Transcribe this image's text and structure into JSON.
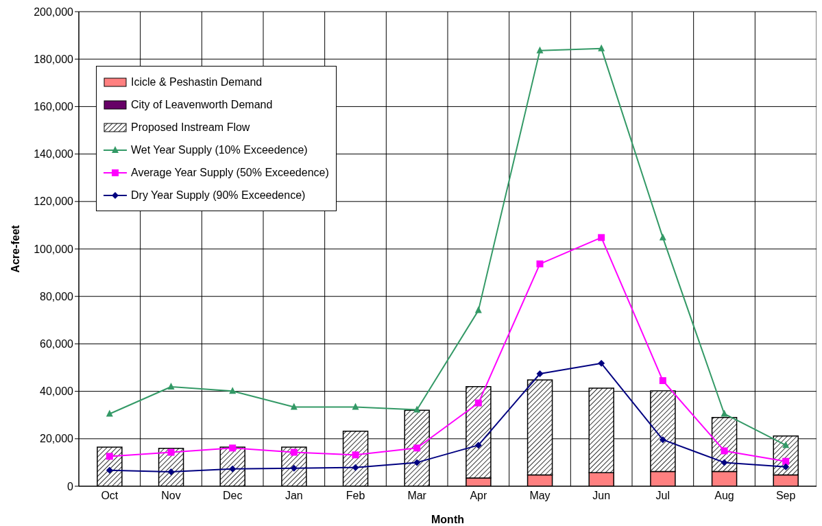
{
  "chart_data": {
    "type": "bar",
    "xlabel": "Month",
    "ylabel": "Acre-feet",
    "stacked": true,
    "categories": [
      "Oct",
      "Nov",
      "Dec",
      "Jan",
      "Feb",
      "Mar",
      "Apr",
      "May",
      "Jun",
      "Jul",
      "Aug",
      "Sep"
    ],
    "series": [
      {
        "name": "Icicle & Peshastin Demand",
        "color": "#ff8080",
        "values": [
          0,
          0,
          0,
          0,
          0,
          0,
          3500,
          4800,
          5700,
          6200,
          6200,
          4800
        ]
      },
      {
        "name": "City of Leavenworth Demand",
        "color": "#660066",
        "values": [
          0,
          0,
          0,
          0,
          0,
          0,
          0,
          0,
          0,
          0,
          0,
          0
        ]
      },
      {
        "name": "Proposed Instream Flow",
        "color": "#000000",
        "values": [
          16500,
          16000,
          16500,
          16500,
          23200,
          32000,
          38500,
          40000,
          35600,
          34000,
          22800,
          16400
        ]
      },
      {
        "name": "Wet Year Supply (10% Exceedence)",
        "type": "line",
        "marker": "triangle",
        "color": "#339966",
        "values": [
          30500,
          41900,
          40100,
          33400,
          33400,
          32200,
          74100,
          183600,
          184500,
          104800,
          30500,
          17300
        ]
      },
      {
        "name": "Average Year Supply (50% Exceedence)",
        "type": "line",
        "marker": "square",
        "color": "#ff00ff",
        "values": [
          12600,
          14300,
          16100,
          14300,
          13200,
          16100,
          35100,
          93700,
          104800,
          44500,
          14900,
          10500
        ]
      },
      {
        "name": "Dry Year Supply (90% Exceedence)",
        "type": "line",
        "marker": "diamond",
        "color": "#000080",
        "values": [
          6700,
          6100,
          7300,
          7600,
          7900,
          10000,
          17300,
          47400,
          51800,
          19600,
          10000,
          8200
        ]
      }
    ],
    "ylim": [
      0,
      200000
    ],
    "yticks": [
      0,
      {
        "value": 20000,
        "label": "20,000"
      },
      {
        "value": 40000,
        "label": "40,000"
      },
      {
        "value": 60000,
        "label": "60,000"
      },
      {
        "value": 80000,
        "label": "80,000"
      },
      {
        "value": 100000,
        "label": "100,000"
      },
      {
        "value": 120000,
        "label": "120,000"
      },
      {
        "value": 140000,
        "label": "140,000"
      },
      {
        "value": 160000,
        "label": "160,000"
      },
      {
        "value": 180000,
        "label": "180,000"
      },
      {
        "value": 200000,
        "label": "200,000"
      }
    ],
    "grid": true,
    "legend": "top left"
  }
}
